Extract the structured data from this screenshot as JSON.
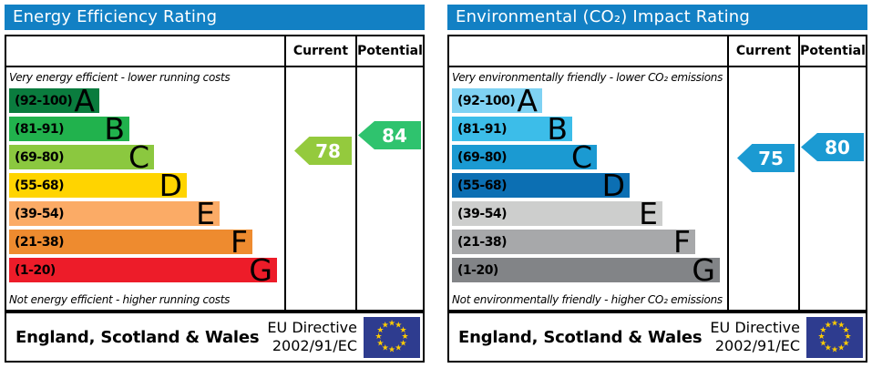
{
  "panels": [
    {
      "title": "Energy Efficiency Rating",
      "columns": {
        "current": "Current",
        "potential": "Potential"
      },
      "top_label": "Very energy efficient - lower running costs",
      "bottom_label": "Not energy efficient - higher running costs",
      "bands": [
        {
          "letter": "A",
          "range": "(92-100)",
          "low": 92,
          "high": 100,
          "color": "#0a7c3e"
        },
        {
          "letter": "B",
          "range": "(81-91)",
          "low": 81,
          "high": 91,
          "color": "#21b24d"
        },
        {
          "letter": "C",
          "range": "(69-80)",
          "low": 69,
          "high": 80,
          "color": "#8bc83f"
        },
        {
          "letter": "D",
          "range": "(55-68)",
          "low": 55,
          "high": 68,
          "color": "#ffd400"
        },
        {
          "letter": "E",
          "range": "(39-54)",
          "low": 39,
          "high": 54,
          "color": "#fbab66"
        },
        {
          "letter": "F",
          "range": "(21-38)",
          "low": 21,
          "high": 38,
          "color": "#ee8b2f"
        },
        {
          "letter": "G",
          "range": "(1-20)",
          "low": 1,
          "high": 20,
          "color": "#ed1c29"
        }
      ],
      "current": {
        "value": 78,
        "color": "#94ca3d"
      },
      "potential": {
        "value": 84,
        "color": "#2fc36e"
      },
      "footer": {
        "region": "England, Scotland & Wales",
        "eu_line1": "EU Directive",
        "eu_line2": "2002/91/EC"
      }
    },
    {
      "title": "Environmental (CO₂) Impact Rating",
      "columns": {
        "current": "Current",
        "potential": "Potential"
      },
      "top_label": "Very environmentally friendly - lower CO₂ emissions",
      "bottom_label": "Not environmentally friendly - higher CO₂ emissions",
      "bands": [
        {
          "letter": "A",
          "range": "(92-100)",
          "low": 92,
          "high": 100,
          "color": "#7fd2f3"
        },
        {
          "letter": "B",
          "range": "(81-91)",
          "low": 81,
          "high": 91,
          "color": "#3cbde9"
        },
        {
          "letter": "C",
          "range": "(69-80)",
          "low": 69,
          "high": 80,
          "color": "#1b9ad2"
        },
        {
          "letter": "D",
          "range": "(55-68)",
          "low": 55,
          "high": 68,
          "color": "#0c6fb3"
        },
        {
          "letter": "E",
          "range": "(39-54)",
          "low": 39,
          "high": 54,
          "color": "#cdcecd"
        },
        {
          "letter": "F",
          "range": "(21-38)",
          "low": 21,
          "high": 38,
          "color": "#a7a8aa"
        },
        {
          "letter": "G",
          "range": "(1-20)",
          "low": 1,
          "high": 20,
          "color": "#828487"
        }
      ],
      "current": {
        "value": 75,
        "color": "#1b9ad2"
      },
      "potential": {
        "value": 80,
        "color": "#1b9ad2"
      },
      "footer": {
        "region": "England, Scotland & Wales",
        "eu_line1": "EU Directive",
        "eu_line2": "2002/91/EC"
      }
    }
  ],
  "chart_data": [
    {
      "type": "bar",
      "title": "Energy Efficiency Rating",
      "categories": [
        "A (92-100)",
        "B (81-91)",
        "C (69-80)",
        "D (55-68)",
        "E (39-54)",
        "F (21-38)",
        "G (1-20)"
      ],
      "band_colors": [
        "#0a7c3e",
        "#21b24d",
        "#8bc83f",
        "#ffd400",
        "#fbab66",
        "#ee8b2f",
        "#ed1c29"
      ],
      "current": 78,
      "potential": 84,
      "top_annotation": "Very energy efficient - lower running costs",
      "bottom_annotation": "Not energy efficient - higher running costs",
      "value_range": [
        1,
        100
      ]
    },
    {
      "type": "bar",
      "title": "Environmental (CO₂) Impact Rating",
      "categories": [
        "A (92-100)",
        "B (81-91)",
        "C (69-80)",
        "D (55-68)",
        "E (39-54)",
        "F (21-38)",
        "G (1-20)"
      ],
      "band_colors": [
        "#7fd2f3",
        "#3cbde9",
        "#1b9ad2",
        "#0c6fb3",
        "#cdcecd",
        "#a7a8aa",
        "#828487"
      ],
      "current": 75,
      "potential": 80,
      "top_annotation": "Very environmentally friendly - lower CO₂ emissions",
      "bottom_annotation": "Not environmentally friendly - higher CO₂ emissions",
      "value_range": [
        1,
        100
      ]
    }
  ]
}
